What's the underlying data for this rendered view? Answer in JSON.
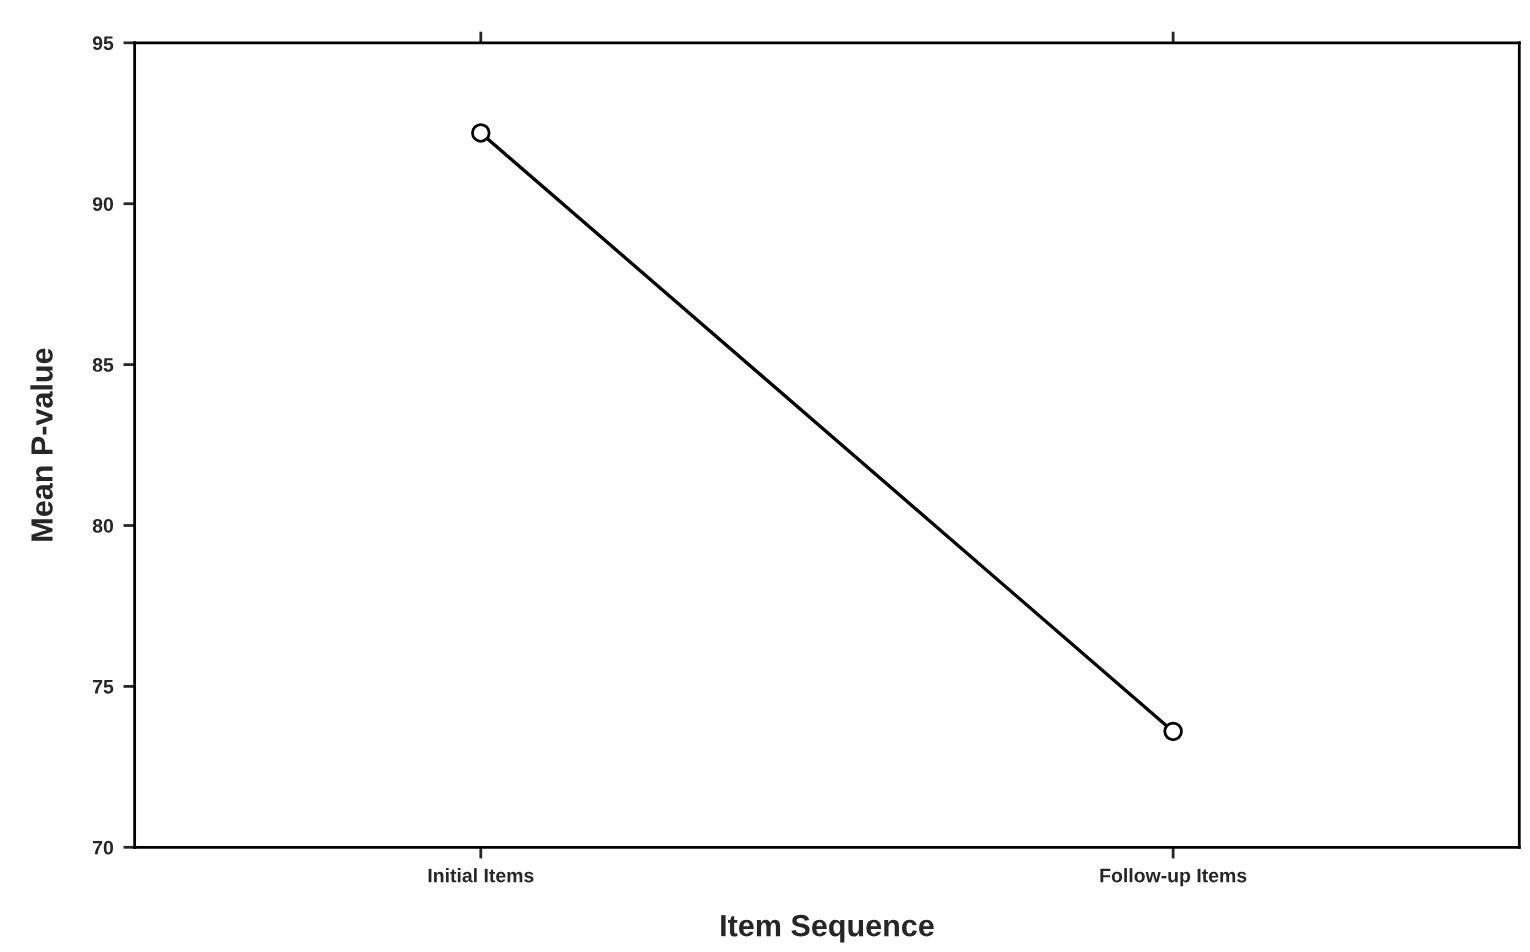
{
  "chart_data": {
    "type": "line",
    "xlabel": "Item Sequence",
    "ylabel": "Mean P-value",
    "categories": [
      "Initial Items",
      "Follow-up Items"
    ],
    "series": [
      {
        "color": "#000000",
        "values": [
          92.2,
          73.6
        ]
      }
    ],
    "ylim": [
      70,
      95
    ],
    "yticks": [
      70,
      75,
      80,
      85,
      90,
      95
    ],
    "grid": false,
    "legend": false,
    "marker": "circle",
    "line_style": "solid"
  }
}
